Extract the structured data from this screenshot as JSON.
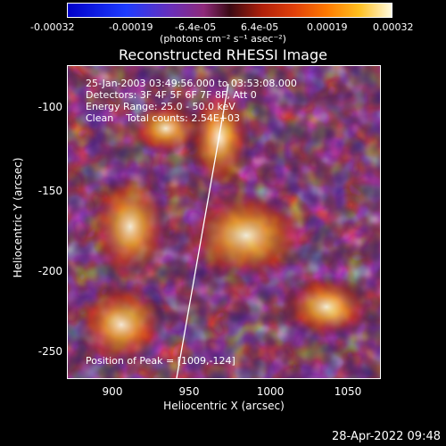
{
  "colorbar": {
    "ticks": [
      "-0.00032",
      "-0.00019",
      "-6.4e-05",
      "6.4e-05",
      "0.00019",
      "0.00032"
    ],
    "units": "(photons cm⁻² s⁻¹ asec⁻²)"
  },
  "title": "Reconstructed RHESSI Image",
  "info": {
    "line1": "25-Jan-2003 03:49:56.000 to 03:53:08.000",
    "line2": "Detectors: 3F 4F 5F 6F 7F 8F, Att 0",
    "line3": "Energy Range: 25.0 - 50.0 keV",
    "line4": "Clean    Total counts: 2.54E+03",
    "peak": "Position of Peak = [1009,-124]"
  },
  "axes": {
    "xlabel": "Heliocentric X (arcsec)",
    "ylabel": "Heliocentric Y (arcsec)",
    "xticks": [
      "900",
      "950",
      "1000",
      "1050"
    ],
    "yticks": [
      "-100",
      "-150",
      "-200",
      "-250"
    ]
  },
  "footer": {
    "timestamp": "28-Apr-2022 09:48"
  },
  "colors": {
    "low": "#1e3cff",
    "mid": "#8e2a7a",
    "high": "#fffbe0"
  }
}
